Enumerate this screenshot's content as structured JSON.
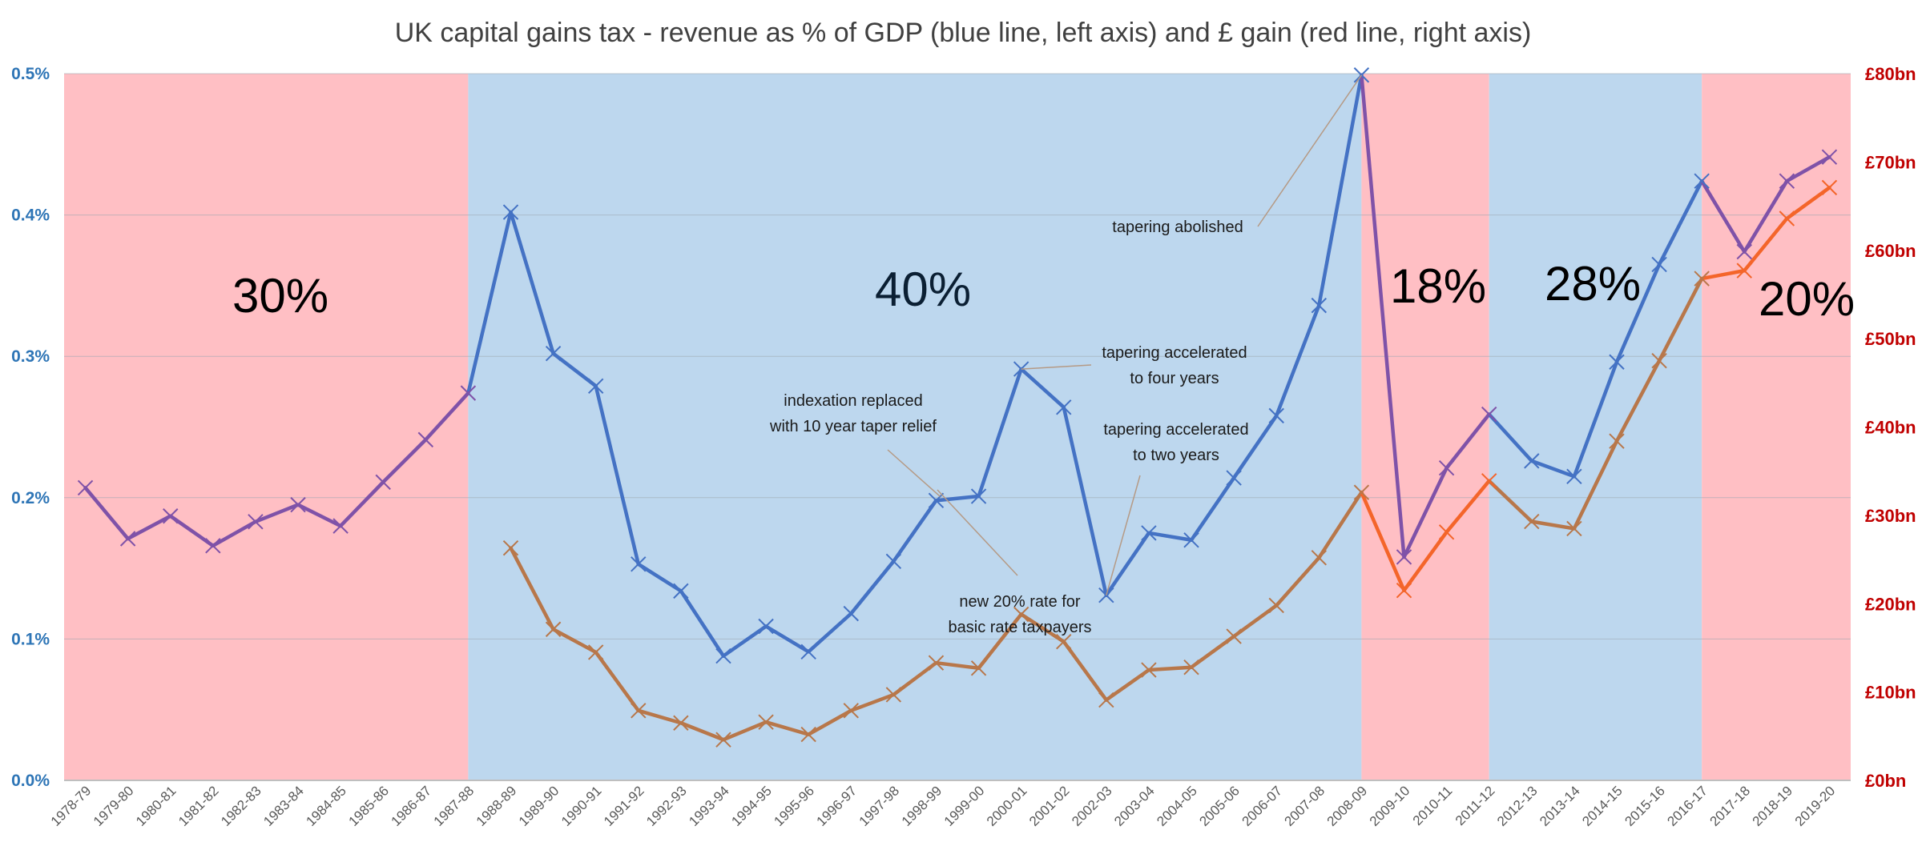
{
  "chart_data": {
    "type": "line",
    "title": "UK capital gains tax - revenue as % of GDP (blue line, left axis) and £ gain (red line, right axis)",
    "x": [
      "1978-79",
      "1979-80",
      "1980-81",
      "1981-82",
      "1982-83",
      "1983-84",
      "1984-85",
      "1985-86",
      "1986-87",
      "1987-88",
      "1988-89",
      "1989-90",
      "1990-91",
      "1991-92",
      "1992-93",
      "1993-94",
      "1994-95",
      "1995-96",
      "1996-97",
      "1997-98",
      "1998-99",
      "1999-00",
      "2000-01",
      "2001-02",
      "2002-03",
      "2003-04",
      "2004-05",
      "2005-06",
      "2006-07",
      "2007-08",
      "2008-09",
      "2009-10",
      "2010-11",
      "2011-12",
      "2012-13",
      "2013-14",
      "2014-15",
      "2015-16",
      "2016-17",
      "2017-18",
      "2018-19",
      "2019-20"
    ],
    "left_axis": {
      "ylim": [
        0,
        0.5
      ],
      "ticks": [
        "0.0%",
        "0.1%",
        "0.2%",
        "0.3%",
        "0.4%",
        "0.5%"
      ],
      "color": "#2e75b6"
    },
    "right_axis": {
      "ylim": [
        0,
        80
      ],
      "ticks": [
        "£0bn",
        "£10bn",
        "£20bn",
        "£30bn",
        "£40bn",
        "£50bn",
        "£60bn",
        "£70bn",
        "£80bn"
      ],
      "color": "#c00000"
    },
    "series": [
      {
        "name": "Revenue as % of GDP",
        "axis": "left",
        "values": [
          0.207,
          0.171,
          0.187,
          0.166,
          0.183,
          0.195,
          0.18,
          0.211,
          0.241,
          0.274,
          0.402,
          0.302,
          0.279,
          0.153,
          0.134,
          0.088,
          0.109,
          0.091,
          0.118,
          0.155,
          0.198,
          0.201,
          0.291,
          0.264,
          0.131,
          0.175,
          0.17,
          0.214,
          0.258,
          0.336,
          0.499,
          0.158,
          0.221,
          0.259,
          0.226,
          0.215,
          0.296,
          0.365,
          0.424,
          0.374,
          0.424,
          0.441
        ]
      },
      {
        "name": "£ gain",
        "axis": "right",
        "values": [
          null,
          null,
          null,
          null,
          null,
          null,
          null,
          null,
          null,
          null,
          26.3,
          17.1,
          14.5,
          7.9,
          6.5,
          4.6,
          6.6,
          5.2,
          7.9,
          9.7,
          13.3,
          12.7,
          18.8,
          15.7,
          9.1,
          12.5,
          12.8,
          16.3,
          19.8,
          25.2,
          32.6,
          21.5,
          28.1,
          33.9,
          29.3,
          28.5,
          38.4,
          47.5,
          56.8,
          57.7,
          63.6,
          67.1
        ]
      }
    ],
    "bands": [
      {
        "label": "30%",
        "from": "1978-79",
        "to": "1987-88",
        "color": "#ffbfc4"
      },
      {
        "label": "40%",
        "from": "1987-88",
        "to": "2008-09",
        "color": "#bdd7ee"
      },
      {
        "label": "18%",
        "from": "2008-09",
        "to": "2011-12",
        "color": "#ffbfc4"
      },
      {
        "label": "28%",
        "from": "2011-12",
        "to": "2016-17",
        "color": "#bdd7ee"
      },
      {
        "label": "20%",
        "from": "2016-17",
        "to": "2019-20",
        "color": "#ffbfc4"
      }
    ],
    "colors": {
      "blue_line": "#4472c4",
      "purple_line": "#7f52a8",
      "brown_line": "#b8774a",
      "orange_line": "#f4652a",
      "pink_band": "#ffbfc4",
      "blue_band": "#bdd7ee"
    },
    "annotations": [
      {
        "lines": [
          "tapering abolished"
        ],
        "target": "2008-09"
      },
      {
        "lines": [
          "tapering accelerated",
          "to four years"
        ],
        "target": "2000-01"
      },
      {
        "lines": [
          "indexation replaced",
          "with 10 year taper relief"
        ],
        "target": "1998-99"
      },
      {
        "lines": [
          "tapering accelerated",
          "to two years"
        ],
        "target": "2002-03"
      },
      {
        "lines": [
          "new 20% rate for",
          "basic rate taxpayers"
        ],
        "target": "2008-09"
      }
    ]
  }
}
